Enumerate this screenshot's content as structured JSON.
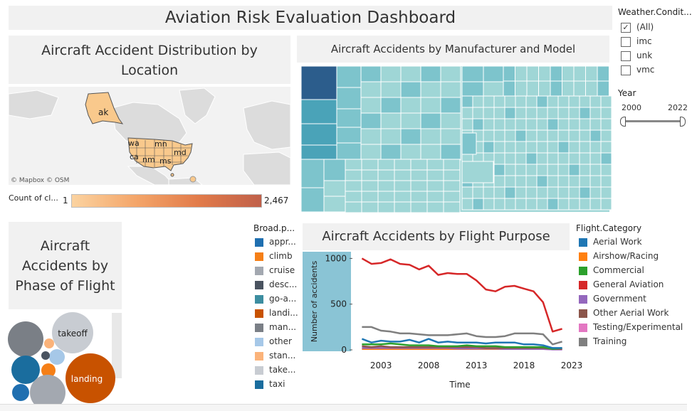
{
  "dashboard": {
    "title": "Aviation Risk Evaluation Dashboard"
  },
  "map_panel": {
    "title_line1": "Aircraft Accident Distribution by",
    "title_line2": "Location",
    "credits": "© Mapbox  © OSM",
    "states": [
      "ak",
      "wa",
      "mn",
      "md",
      "ca",
      "nm",
      "ms"
    ],
    "legend_label": "Count of cl...",
    "legend_min": "1",
    "legend_max": "2,467",
    "colors": {
      "low": "#fbd3a0",
      "high": "#c0604a",
      "land": "#dcdcdc",
      "water": "#f2f2f2",
      "us": "#f9c98c"
    }
  },
  "treemap_panel": {
    "title": "Aircraft Accidents by Manufacturer and Model",
    "colors": {
      "dark": "#2c5d8c",
      "mid": "#4aa3b8",
      "light": "#7dc4cc",
      "pale": "#9fd6d6"
    }
  },
  "filters": {
    "weather_title": "Weather.Condit...",
    "weather_options": [
      {
        "label": "(All)",
        "checked": true
      },
      {
        "label": "imc",
        "checked": false
      },
      {
        "label": "unk",
        "checked": false
      },
      {
        "label": "vmc",
        "checked": false
      }
    ],
    "year_title": "Year",
    "year_min": "2000",
    "year_max": "2022"
  },
  "phase_panel": {
    "title_line1": "Aircraft",
    "title_line2": "Accidents by",
    "title_line3": "Phase of Flight",
    "bubble_labels": {
      "takeoff": "takeoff",
      "landing": "landing"
    },
    "legend_title": "Broad.p...",
    "legend": [
      {
        "label": "appr...",
        "color": "#1f6fb0"
      },
      {
        "label": "climb",
        "color": "#f57f17"
      },
      {
        "label": "cruise",
        "color": "#a3a8b0"
      },
      {
        "label": "desc...",
        "color": "#4a5360"
      },
      {
        "label": "go-a...",
        "color": "#3c8da0"
      },
      {
        "label": "landi...",
        "color": "#c85200"
      },
      {
        "label": "man...",
        "color": "#7a7f86"
      },
      {
        "label": "other",
        "color": "#a6c8e8"
      },
      {
        "label": "stan...",
        "color": "#fbb37a"
      },
      {
        "label": "take...",
        "color": "#c8ccd2"
      },
      {
        "label": "taxi",
        "color": "#1a6d9e"
      }
    ]
  },
  "purpose_panel": {
    "title": "Aircraft Accidents by Flight Purpose",
    "legend_title": "Flight.Category",
    "legend": [
      {
        "label": "Aerial Work",
        "color": "#1f77b4"
      },
      {
        "label": "Airshow/Racing",
        "color": "#ff7f0e"
      },
      {
        "label": "Commercial",
        "color": "#2ca02c"
      },
      {
        "label": "General Aviation",
        "color": "#d62728"
      },
      {
        "label": "Government",
        "color": "#9467bd"
      },
      {
        "label": "Other Aerial Work",
        "color": "#8c564b"
      },
      {
        "label": "Testing/Experimental",
        "color": "#e377c2"
      },
      {
        "label": "Training",
        "color": "#7f7f7f"
      }
    ]
  },
  "chart_data": {
    "type": "line",
    "xlabel": "Time",
    "ylabel": "Number of accidents",
    "xlim": [
      2000,
      2023
    ],
    "ylim": [
      0,
      1050
    ],
    "xticks": [
      2003,
      2008,
      2013,
      2018,
      2023
    ],
    "yticks": [
      0,
      500,
      1000
    ],
    "x": [
      2001,
      2002,
      2003,
      2004,
      2005,
      2006,
      2007,
      2008,
      2009,
      2010,
      2011,
      2012,
      2013,
      2014,
      2015,
      2016,
      2017,
      2018,
      2019,
      2020,
      2021,
      2022
    ],
    "series": [
      {
        "name": "General Aviation",
        "color": "#d62728",
        "values": [
          1000,
          940,
          950,
          990,
          940,
          930,
          880,
          920,
          820,
          840,
          830,
          830,
          760,
          660,
          640,
          690,
          700,
          670,
          640,
          520,
          200,
          230
        ]
      },
      {
        "name": "Training",
        "color": "#7f7f7f",
        "values": [
          250,
          250,
          210,
          200,
          180,
          180,
          170,
          160,
          160,
          160,
          170,
          180,
          150,
          140,
          140,
          150,
          180,
          180,
          180,
          170,
          60,
          90
        ]
      },
      {
        "name": "Aerial Work",
        "color": "#1f77b4",
        "values": [
          120,
          80,
          100,
          90,
          90,
          110,
          80,
          120,
          80,
          90,
          80,
          80,
          80,
          70,
          80,
          80,
          80,
          60,
          60,
          50,
          20,
          20
        ]
      },
      {
        "name": "Commercial",
        "color": "#2ca02c",
        "values": [
          60,
          60,
          60,
          70,
          60,
          50,
          50,
          50,
          40,
          40,
          40,
          50,
          40,
          40,
          40,
          30,
          30,
          30,
          30,
          30,
          10,
          20
        ]
      },
      {
        "name": "Other Aerial Work",
        "color": "#8c564b",
        "values": [
          40,
          30,
          40,
          30,
          30,
          30,
          30,
          30,
          30,
          30,
          30,
          30,
          30,
          20,
          20,
          20,
          20,
          20,
          20,
          20,
          10,
          10
        ]
      },
      {
        "name": "Government",
        "color": "#9467bd",
        "values": [
          20,
          20,
          20,
          20,
          20,
          20,
          20,
          20,
          20,
          20,
          15,
          15,
          15,
          15,
          15,
          10,
          10,
          10,
          10,
          10,
          5,
          5
        ]
      },
      {
        "name": "Airshow/Racing",
        "color": "#ff7f0e",
        "values": [
          10,
          10,
          10,
          10,
          10,
          10,
          10,
          10,
          10,
          10,
          10,
          10,
          10,
          10,
          10,
          10,
          10,
          10,
          null,
          null,
          null,
          null
        ]
      },
      {
        "name": "Testing/Experimental",
        "color": "#e377c2",
        "values": [
          10,
          10,
          10,
          10,
          10,
          10,
          10,
          10,
          10,
          10,
          10,
          10,
          10,
          10,
          10,
          10,
          10,
          10,
          10,
          10,
          5,
          5
        ]
      }
    ]
  }
}
